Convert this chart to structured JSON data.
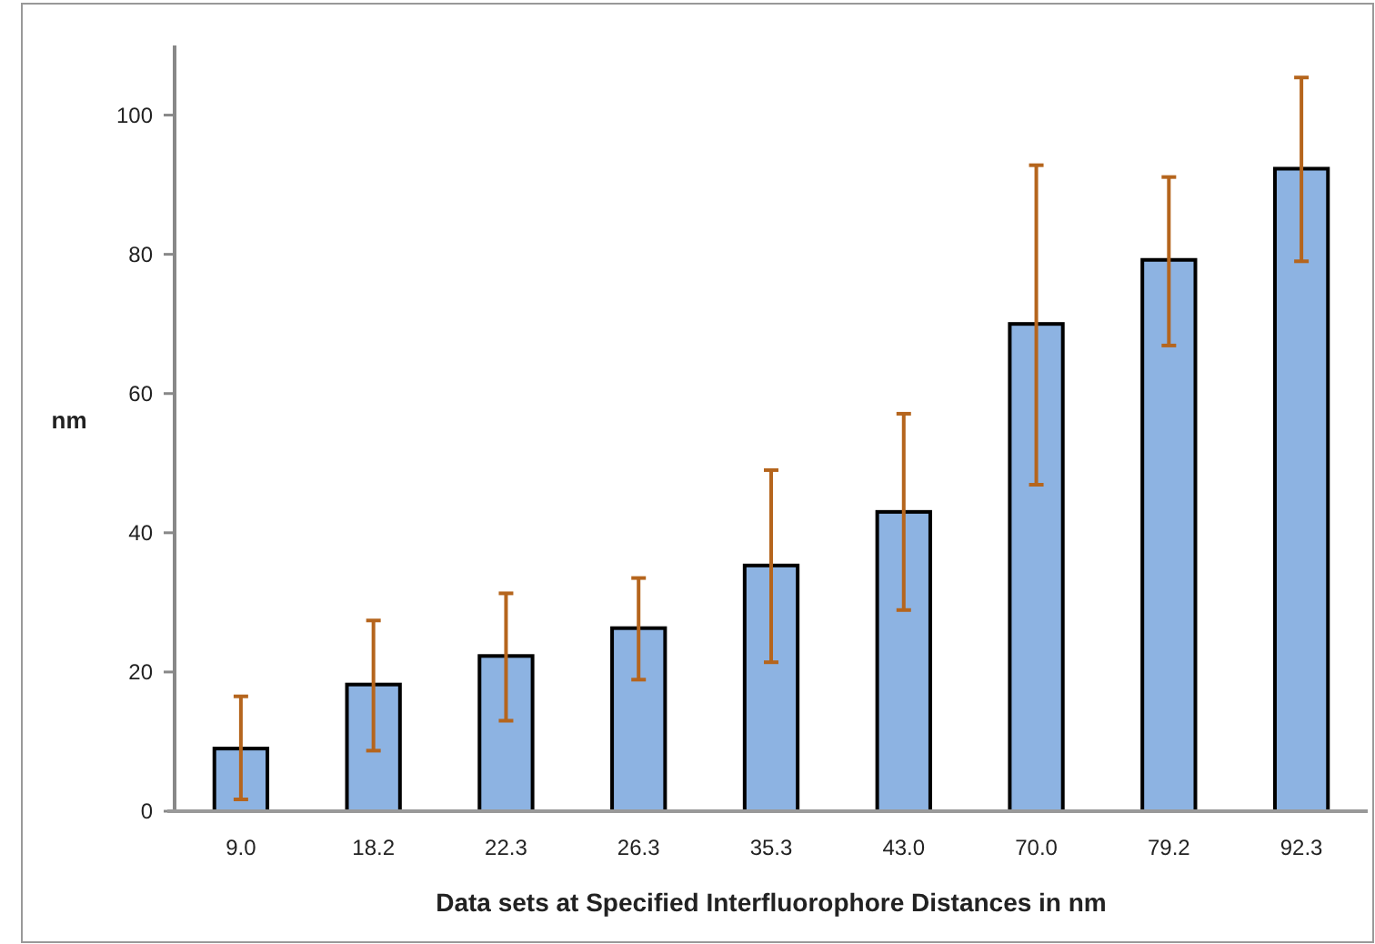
{
  "chart_data": {
    "type": "bar",
    "xlabel": "Data sets at Specified Interfluorophore Distances in nm",
    "ylabel": "nm",
    "categories": [
      "9.0",
      "18.2",
      "22.3",
      "26.3",
      "35.3",
      "43.0",
      "70.0",
      "79.2",
      "92.3"
    ],
    "values": [
      9.0,
      18.2,
      22.3,
      26.3,
      35.3,
      43.0,
      70.0,
      79.2,
      92.3
    ],
    "errors": [
      [
        1.7,
        16.5
      ],
      [
        8.7,
        27.4
      ],
      [
        13.0,
        31.3
      ],
      [
        18.9,
        33.5
      ],
      [
        21.4,
        49.0
      ],
      [
        28.9,
        57.1
      ],
      [
        46.9,
        92.8
      ],
      [
        66.9,
        91.1
      ],
      [
        79.0,
        105.4
      ]
    ],
    "color": "#8db3e2",
    "ylim": [
      0,
      110
    ],
    "yticks": [
      0,
      20,
      40,
      60,
      80,
      100
    ],
    "grid": false
  }
}
